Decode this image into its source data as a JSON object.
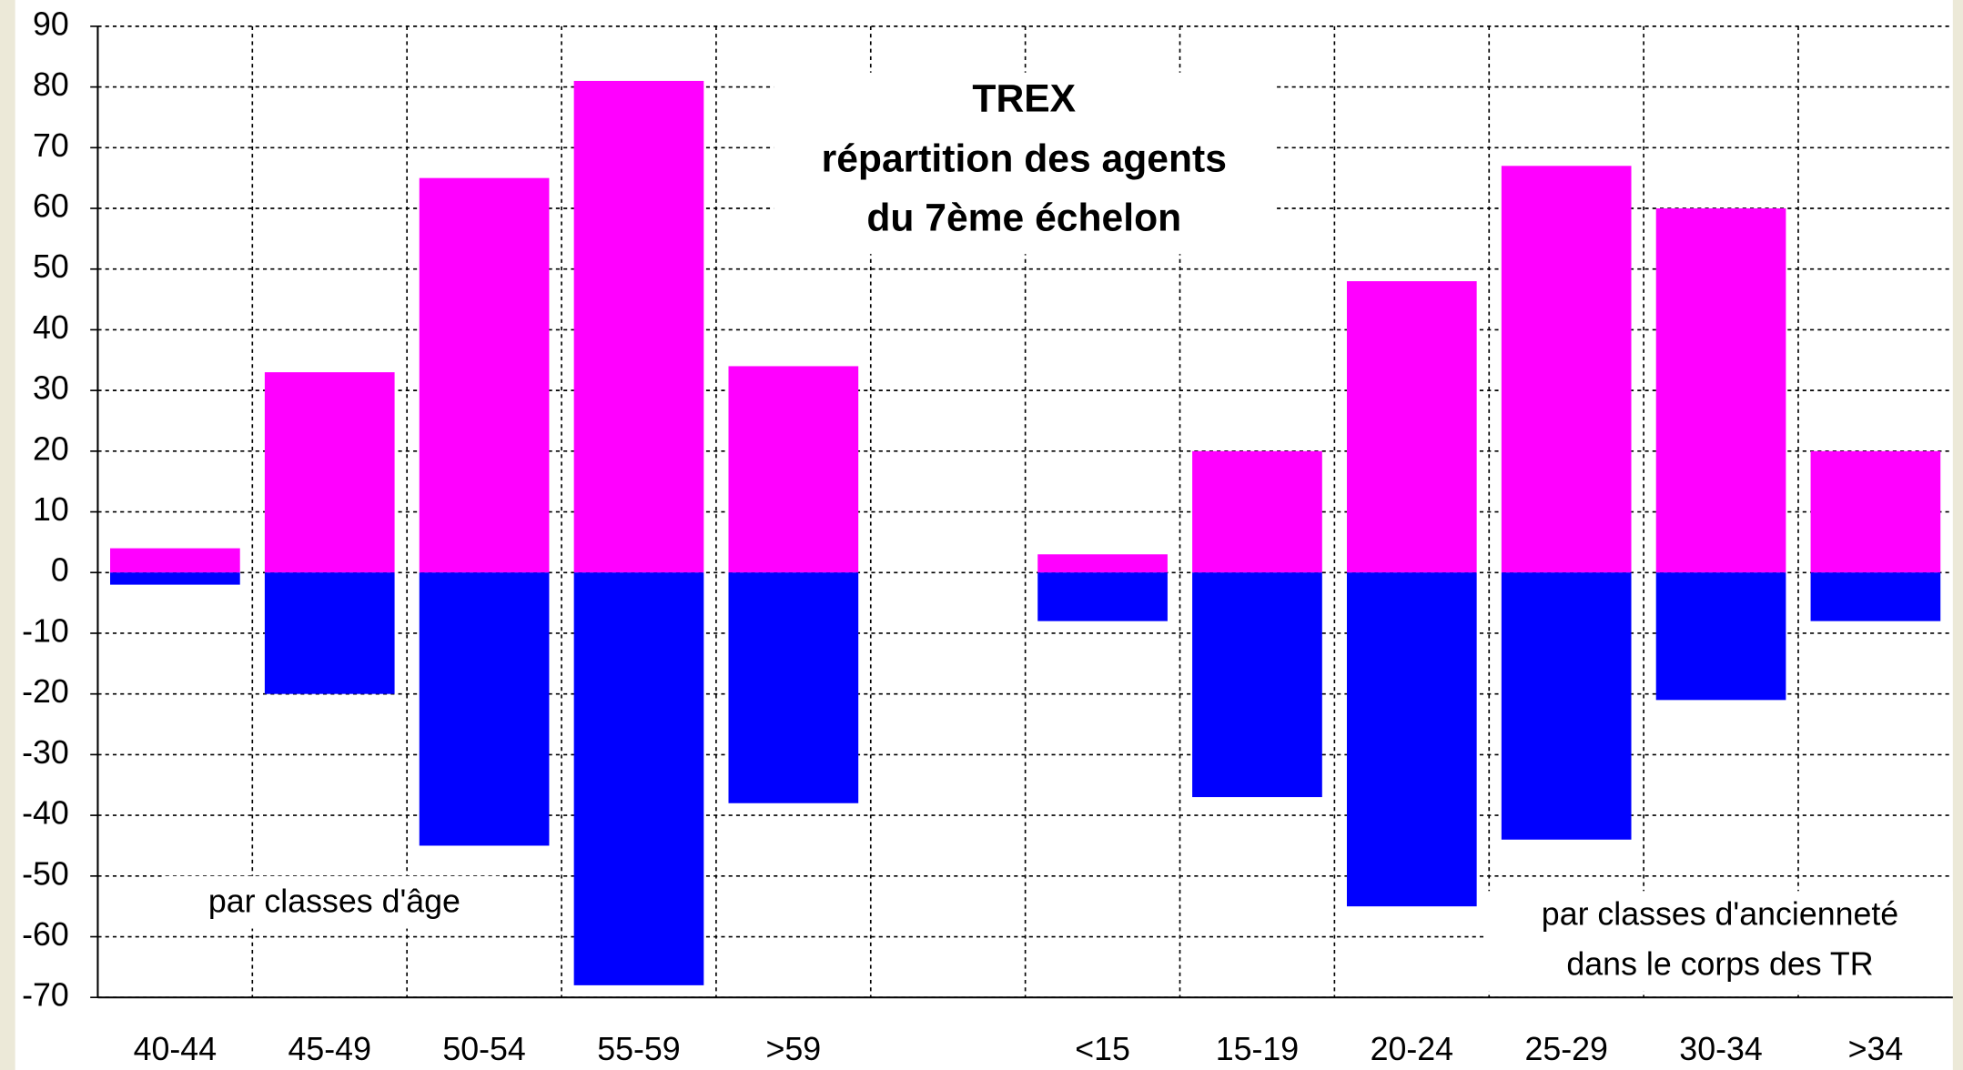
{
  "chart_data": {
    "type": "bar",
    "title": [
      "TREX",
      "répartition des agents",
      "du 7ème échelon"
    ],
    "annotations": [
      "par classes d'âge",
      "par classes d'ancienneté",
      "dans le corps des TR"
    ],
    "categories": [
      "40-44",
      "45-49",
      "50-54",
      "55-59",
      ">59",
      null,
      "<15",
      "15-19",
      "20-24",
      "25-29",
      "30-34",
      ">34"
    ],
    "series": [
      {
        "color": "#ff00ff",
        "values": [
          4,
          33,
          65,
          81,
          34,
          null,
          3,
          20,
          48,
          67,
          60,
          20
        ]
      },
      {
        "color": "#0000ff",
        "values": [
          -2,
          -20,
          -45,
          -68,
          -38,
          null,
          -8,
          -37,
          -55,
          -44,
          -21,
          -8
        ]
      }
    ],
    "ylim": [
      -70,
      90
    ],
    "yticks": [
      -70,
      -60,
      -50,
      -40,
      -30,
      -20,
      -10,
      0,
      10,
      20,
      30,
      40,
      50,
      60,
      70,
      80,
      90
    ],
    "grid": true
  }
}
